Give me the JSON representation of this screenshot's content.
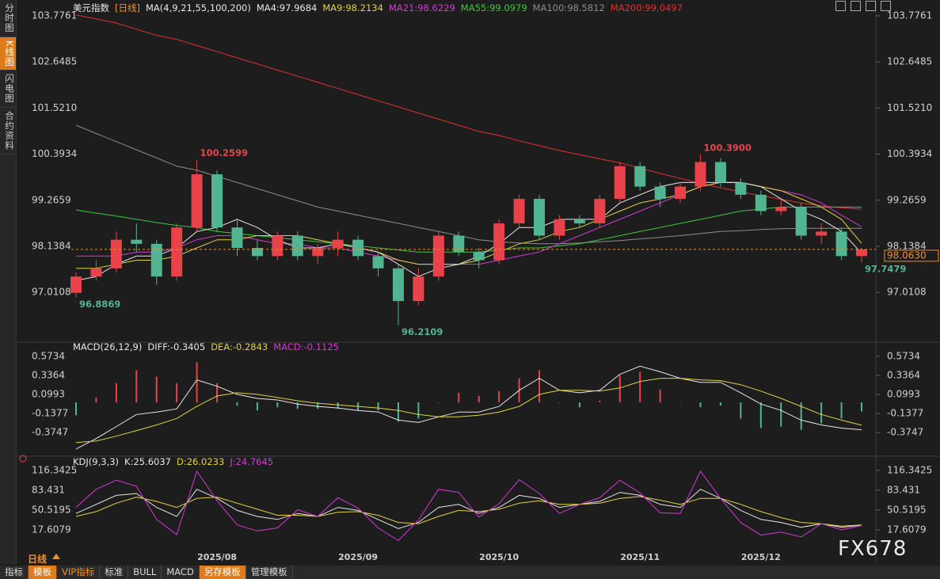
{
  "chart_data": [
    {
      "type": "candlestick",
      "title": "美元指数",
      "period": "[日线]",
      "indicator": "MA(4,9,21,55,100,200)",
      "categories": [
        null,
        null,
        null,
        null,
        null,
        null,
        null,
        "2025/08",
        null,
        null,
        null,
        null,
        null,
        null,
        "2025/09",
        null,
        null,
        null,
        null,
        null,
        null,
        "2025/10",
        null,
        null,
        null,
        null,
        null,
        null,
        "2025/11",
        null,
        null,
        null,
        null,
        null,
        "2025/12",
        null,
        null,
        null,
        null,
        null
      ],
      "open": [
        97.0,
        97.4,
        97.6,
        98.3,
        98.2,
        97.4,
        98.6,
        99.9,
        98.6,
        98.1,
        97.9,
        98.4,
        97.9,
        98.1,
        98.3,
        97.9,
        97.6,
        96.8,
        97.4,
        98.4,
        98.0,
        97.8,
        98.7,
        99.3,
        98.4,
        98.8,
        98.7,
        99.3,
        100.1,
        99.6,
        99.3,
        99.6,
        100.2,
        99.7,
        99.4,
        99.0,
        99.1,
        98.4,
        98.5,
        97.9
      ],
      "high": [
        97.5,
        97.8,
        98.5,
        98.7,
        98.3,
        98.7,
        100.2599,
        100.0,
        98.8,
        98.3,
        98.5,
        98.5,
        98.2,
        98.5,
        98.4,
        98.0,
        97.7,
        97.6,
        98.5,
        98.5,
        98.1,
        98.8,
        99.4,
        99.4,
        98.9,
        98.9,
        99.4,
        100.2,
        100.2,
        99.7,
        99.7,
        100.39,
        100.3,
        99.8,
        99.5,
        99.3,
        99.2,
        98.7,
        98.6,
        98.1
      ],
      "low": [
        96.8869,
        97.3,
        97.5,
        98.0,
        97.2,
        97.3,
        98.5,
        98.5,
        97.9,
        97.8,
        97.8,
        97.8,
        97.7,
        97.9,
        97.8,
        97.4,
        96.2109,
        96.7,
        97.3,
        97.9,
        97.6,
        97.7,
        98.6,
        98.3,
        98.3,
        98.6,
        98.6,
        99.2,
        99.5,
        99.1,
        99.2,
        99.5,
        99.6,
        99.3,
        98.9,
        98.9,
        98.3,
        98.2,
        97.8,
        97.7479
      ],
      "close": [
        97.4,
        97.6,
        98.3,
        98.2,
        97.4,
        98.6,
        99.9,
        98.6,
        98.1,
        97.9,
        98.4,
        97.9,
        98.1,
        98.3,
        97.9,
        97.6,
        96.8,
        97.4,
        98.4,
        98.0,
        97.8,
        98.7,
        99.3,
        98.4,
        98.8,
        98.7,
        99.3,
        100.1,
        99.6,
        99.3,
        99.6,
        100.2,
        99.7,
        99.4,
        99.0,
        99.1,
        98.4,
        98.5,
        97.9,
        98.063
      ],
      "up_color": "#e8434b",
      "down_color": "#52b592",
      "series": [
        {
          "name": "MA4:97.9684",
          "color": "#e6e6e6",
          "values": [
            97.3,
            97.4,
            97.7,
            97.9,
            97.9,
            98.1,
            98.5,
            98.6,
            98.8,
            98.6,
            98.3,
            98.1,
            98.1,
            98.2,
            98.1,
            98.0,
            97.7,
            97.4,
            97.6,
            97.7,
            97.9,
            98.2,
            98.6,
            98.6,
            98.8,
            98.8,
            98.8,
            99.2,
            99.4,
            99.6,
            99.7,
            99.7,
            99.7,
            99.7,
            99.6,
            99.3,
            99.0,
            98.8,
            98.5,
            97.97
          ]
        },
        {
          "name": "MA9:98.2134",
          "color": "#e2d23c",
          "values": [
            97.6,
            97.6,
            97.7,
            97.8,
            97.8,
            97.9,
            98.1,
            98.3,
            98.3,
            98.4,
            98.4,
            98.4,
            98.3,
            98.2,
            98.1,
            98.0,
            97.8,
            97.7,
            97.7,
            97.7,
            97.8,
            98.0,
            98.2,
            98.3,
            98.5,
            98.6,
            98.8,
            99.0,
            99.2,
            99.3,
            99.4,
            99.6,
            99.7,
            99.7,
            99.6,
            99.5,
            99.3,
            99.1,
            98.8,
            98.21
          ]
        },
        {
          "name": "MA21:98.6229",
          "color": "#d23ad2",
          "values": [
            97.9,
            97.9,
            97.9,
            98.0,
            98.0,
            98.1,
            98.3,
            98.4,
            98.4,
            98.3,
            98.2,
            98.2,
            98.1,
            98.1,
            98.0,
            97.9,
            97.8,
            97.7,
            97.7,
            97.7,
            97.7,
            97.8,
            97.9,
            98.0,
            98.2,
            98.4,
            98.6,
            98.8,
            99.0,
            99.2,
            99.4,
            99.6,
            99.7,
            99.7,
            99.6,
            99.5,
            99.4,
            99.2,
            98.9,
            98.62
          ]
        },
        {
          "name": "MA55:99.0979",
          "color": "#3cc83c",
          "values": [
            99.03,
            98.95,
            98.88,
            98.8,
            98.72,
            98.65,
            98.6,
            98.5,
            98.45,
            98.4,
            98.35,
            98.3,
            98.25,
            98.2,
            98.15,
            98.1,
            98.05,
            98.0,
            98.0,
            98.0,
            98.0,
            98.05,
            98.1,
            98.1,
            98.15,
            98.2,
            98.3,
            98.4,
            98.5,
            98.6,
            98.7,
            98.8,
            98.9,
            99.0,
            99.05,
            99.1,
            99.1,
            99.1,
            99.1,
            99.0979
          ]
        },
        {
          "name": "MA100:98.5812",
          "color": "#8c8c8c",
          "values": [
            101.1,
            100.9,
            100.7,
            100.5,
            100.3,
            100.1,
            100.0,
            99.85,
            99.7,
            99.55,
            99.4,
            99.25,
            99.1,
            99.0,
            98.9,
            98.8,
            98.7,
            98.6,
            98.5,
            98.4,
            98.3,
            98.25,
            98.22,
            98.2,
            98.2,
            98.22,
            98.25,
            98.28,
            98.32,
            98.36,
            98.4,
            98.45,
            98.5,
            98.52,
            98.55,
            98.57,
            98.58,
            98.58,
            98.58,
            98.5812
          ]
        },
        {
          "name": "MA200:99.0497",
          "color": "#e03030",
          "values": [
            103.8,
            103.7,
            103.6,
            103.45,
            103.3,
            103.2,
            103.05,
            102.9,
            102.75,
            102.6,
            102.45,
            102.3,
            102.15,
            102.0,
            101.85,
            101.7,
            101.55,
            101.4,
            101.25,
            101.1,
            100.95,
            100.85,
            100.72,
            100.6,
            100.48,
            100.38,
            100.28,
            100.18,
            100.05,
            99.92,
            99.8,
            99.68,
            99.57,
            99.47,
            99.38,
            99.29,
            99.2,
            99.13,
            99.08,
            99.0497
          ]
        }
      ],
      "ylim": [
        95.93,
        103.97
      ],
      "yticks": [
        103.7761,
        102.6485,
        {
          "value": 101.521,
          "label": "101.5210"
        },
        100.3934,
        99.2659,
        98.1384,
        97.0108
      ],
      "annotations": [
        {
          "index": 6,
          "value": 100.2599,
          "color": "#e8434b"
        },
        {
          "index": 31,
          "value": {
            "value": 100.39,
            "label": "100.3900"
          },
          "color": "#e8434b"
        },
        {
          "index": 0,
          "value": 96.8869,
          "color": "#52b592"
        },
        {
          "index": 16,
          "value": 96.2109,
          "color": "#52b592"
        },
        {
          "index": 39,
          "value": 97.7479,
          "color": "#52b592"
        }
      ],
      "last": {
        "value": 98.063,
        "label": "98.0630",
        "color": "#f0902a"
      }
    },
    {
      "type": "macd",
      "title": "MACD(26,12,9)",
      "series": [
        {
          "name": "DIFF:-0.3405",
          "color": "#e6e6e6",
          "style": "line",
          "values": [
            -0.58,
            -0.45,
            -0.3,
            -0.15,
            -0.12,
            -0.08,
            0.28,
            0.2,
            0.1,
            0.05,
            0.03,
            -0.02,
            -0.05,
            -0.07,
            -0.1,
            -0.12,
            -0.22,
            -0.25,
            -0.18,
            -0.12,
            -0.12,
            -0.05,
            0.15,
            0.3,
            0.15,
            0.12,
            0.15,
            0.35,
            0.45,
            0.38,
            0.3,
            0.25,
            0.25,
            0.12,
            -0.02,
            -0.1,
            -0.22,
            -0.28,
            -0.32,
            -0.3405
          ]
        },
        {
          "name": "DEA:-0.2843",
          "color": "#e2d23c",
          "style": "line",
          "values": [
            -0.5,
            -0.48,
            -0.42,
            -0.35,
            -0.28,
            -0.2,
            -0.05,
            0.08,
            0.12,
            0.1,
            0.06,
            0.02,
            -0.01,
            -0.03,
            -0.05,
            -0.07,
            -0.1,
            -0.15,
            -0.18,
            -0.18,
            -0.16,
            -0.12,
            -0.05,
            0.1,
            0.15,
            0.15,
            0.14,
            0.18,
            0.26,
            0.3,
            0.3,
            0.28,
            0.27,
            0.22,
            0.14,
            0.05,
            -0.05,
            -0.15,
            -0.22,
            -0.2843
          ]
        },
        {
          "name": "MACD:-0.1125",
          "color": "#d23ad2",
          "style": "bar",
          "up_color": "#e8434b",
          "down_color": "#52b592",
          "values": [
            -0.16,
            0.06,
            0.24,
            0.4,
            0.32,
            0.24,
            0.5,
            0.24,
            -0.04,
            -0.1,
            -0.06,
            -0.08,
            -0.08,
            -0.08,
            -0.1,
            -0.1,
            -0.24,
            -0.2,
            0.0,
            0.12,
            0.08,
            0.14,
            0.3,
            0.4,
            0.0,
            -0.06,
            0.02,
            0.34,
            0.38,
            0.16,
            0.0,
            -0.06,
            -0.04,
            -0.2,
            -0.32,
            -0.3,
            -0.34,
            -0.26,
            -0.2,
            -0.1125
          ]
        }
      ],
      "ylim": [
        -0.62,
        0.67
      ],
      "yticks": [
        0.5734,
        0.3364,
        0.0993,
        -0.1377,
        -0.3747
      ]
    },
    {
      "type": "kdj",
      "title": "KDJ(9,3,3)",
      "series": [
        {
          "name": "K:25.6037",
          "color": "#e6e6e6",
          "style": "line",
          "values": [
            45,
            60,
            75,
            78,
            55,
            40,
            85,
            70,
            50,
            40,
            35,
            45,
            40,
            55,
            50,
            35,
            20,
            30,
            55,
            60,
            45,
            55,
            75,
            70,
            55,
            60,
            65,
            80,
            75,
            60,
            55,
            85,
            70,
            50,
            35,
            30,
            22,
            28,
            22,
            25.6037
          ]
        },
        {
          "name": "D:26.0233",
          "color": "#e2d23c",
          "style": "line",
          "values": [
            40,
            48,
            62,
            72,
            65,
            55,
            70,
            72,
            62,
            52,
            42,
            42,
            40,
            47,
            48,
            42,
            30,
            28,
            40,
            50,
            48,
            52,
            62,
            66,
            60,
            60,
            62,
            70,
            73,
            67,
            60,
            70,
            70,
            60,
            48,
            38,
            30,
            28,
            24,
            26.0233
          ]
        },
        {
          "name": "J:24.7645",
          "color": "#d23ad2",
          "style": "line",
          "values": [
            55,
            85,
            100,
            90,
            35,
            10,
            115,
            66,
            26,
            16,
            21,
            51,
            40,
            71,
            54,
            21,
            0,
            34,
            85,
            80,
            39,
            61,
            101,
            78,
            45,
            60,
            71,
            100,
            79,
            46,
            45,
            115,
            70,
            30,
            9,
            14,
            6,
            28,
            18,
            24.7645
          ]
        }
      ],
      "ylim": [
        -23,
        128
      ],
      "yticks": [
        116.3425,
        83.431,
        50.5195,
        17.6079
      ]
    }
  ],
  "ui": {
    "sidebar": [
      {
        "text": "分时图",
        "active": false
      },
      {
        "text": "K线图",
        "active": true
      },
      {
        "text": "闪电图",
        "active": false
      },
      {
        "text": "合约资料",
        "active": false
      }
    ],
    "period_label": "日线",
    "toolbar": [
      {
        "text": "指标",
        "tone": "plain"
      },
      {
        "text": "模板",
        "tone": "fill"
      },
      {
        "text": "VIP指标",
        "tone": "accent"
      },
      {
        "text": "标准",
        "tone": "plain"
      },
      {
        "text": "BULL",
        "tone": "plain"
      },
      {
        "text": "MACD",
        "tone": "plain"
      },
      {
        "text": "另存模板",
        "tone": "fill"
      },
      {
        "text": "管理模板",
        "tone": "plain"
      }
    ],
    "watermark": "FX678"
  }
}
